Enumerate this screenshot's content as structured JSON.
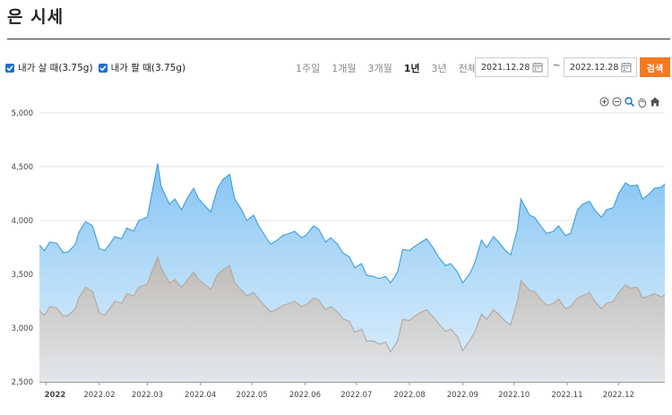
{
  "page": {
    "title": "은 시세"
  },
  "legend": {
    "buy_label": "내가 살 때(3.75g)",
    "sell_label": "내가 팔 때(3.75g)"
  },
  "periods": [
    {
      "label": "1주일",
      "active": false
    },
    {
      "label": "1개월",
      "active": false
    },
    {
      "label": "3개월",
      "active": false
    },
    {
      "label": "1년",
      "active": true
    },
    {
      "label": "3년",
      "active": false
    },
    {
      "label": "전체",
      "active": false
    }
  ],
  "date_range": {
    "start": "2021.12.28",
    "separator": "~",
    "end": "2022.12.28"
  },
  "search_label": "검색",
  "toolbar_icons": [
    "zoom-in-icon",
    "zoom-out-icon",
    "magnifier-icon",
    "pan-hand-icon",
    "home-icon"
  ],
  "colors": {
    "buy_line": "#3d9ee0",
    "buy_fill": "#9fd3f8",
    "sell_line": "#b0a9a3",
    "sell_fill": "#d4d6d9",
    "accent": "#f47a20"
  },
  "chart_data": {
    "type": "area",
    "title": "",
    "xlabel": "",
    "ylabel": "",
    "ylim": [
      2500,
      5000
    ],
    "yticks": [
      2500,
      3000,
      3500,
      4000,
      4500,
      5000
    ],
    "ytick_labels": [
      "2,500",
      "3,000",
      "3,500",
      "4,000",
      "4,500",
      "5,000"
    ],
    "x_start": "2021-12-28",
    "x_end": "2022-12-28",
    "xticks": [
      {
        "date": "2022-01-01",
        "label": "2022"
      },
      {
        "date": "2022-02-01",
        "label": "2022.02"
      },
      {
        "date": "2022-03-01",
        "label": "2022.03"
      },
      {
        "date": "2022-04-01",
        "label": "2022.04"
      },
      {
        "date": "2022-05-01",
        "label": "2022.05"
      },
      {
        "date": "2022-06-01",
        "label": "2022.06"
      },
      {
        "date": "2022-07-01",
        "label": "2022.07"
      },
      {
        "date": "2022-08-01",
        "label": "2022.08"
      },
      {
        "date": "2022-09-01",
        "label": "2022.09"
      },
      {
        "date": "2022-10-01",
        "label": "2022.10"
      },
      {
        "date": "2022-11-01",
        "label": "2022.11"
      },
      {
        "date": "2022-12-01",
        "label": "2022.12"
      }
    ],
    "grid": true,
    "legend": "top-left",
    "series": [
      {
        "name": "내가 살 때(3.75g)",
        "points": [
          [
            "2021-12-28",
            3770
          ],
          [
            "2021-12-31",
            3720
          ],
          [
            "2022-01-03",
            3800
          ],
          [
            "2022-01-07",
            3790
          ],
          [
            "2022-01-11",
            3700
          ],
          [
            "2022-01-14",
            3710
          ],
          [
            "2022-01-18",
            3780
          ],
          [
            "2022-01-20",
            3890
          ],
          [
            "2022-01-24",
            3990
          ],
          [
            "2022-01-28",
            3950
          ],
          [
            "2022-02-01",
            3740
          ],
          [
            "2022-02-04",
            3720
          ],
          [
            "2022-02-07",
            3780
          ],
          [
            "2022-02-10",
            3850
          ],
          [
            "2022-02-14",
            3830
          ],
          [
            "2022-02-17",
            3930
          ],
          [
            "2022-02-21",
            3900
          ],
          [
            "2022-02-24",
            4000
          ],
          [
            "2022-03-01",
            4030
          ],
          [
            "2022-03-03",
            4200
          ],
          [
            "2022-03-07",
            4530
          ],
          [
            "2022-03-09",
            4320
          ],
          [
            "2022-03-11",
            4250
          ],
          [
            "2022-03-14",
            4150
          ],
          [
            "2022-03-17",
            4200
          ],
          [
            "2022-03-21",
            4100
          ],
          [
            "2022-03-24",
            4200
          ],
          [
            "2022-03-28",
            4300
          ],
          [
            "2022-03-31",
            4200
          ],
          [
            "2022-04-04",
            4130
          ],
          [
            "2022-04-07",
            4080
          ],
          [
            "2022-04-11",
            4300
          ],
          [
            "2022-04-14",
            4380
          ],
          [
            "2022-04-18",
            4430
          ],
          [
            "2022-04-21",
            4200
          ],
          [
            "2022-04-25",
            4100
          ],
          [
            "2022-04-28",
            4000
          ],
          [
            "2022-05-02",
            4050
          ],
          [
            "2022-05-05",
            3950
          ],
          [
            "2022-05-09",
            3850
          ],
          [
            "2022-05-12",
            3780
          ],
          [
            "2022-05-16",
            3820
          ],
          [
            "2022-05-19",
            3860
          ],
          [
            "2022-05-23",
            3880
          ],
          [
            "2022-05-26",
            3900
          ],
          [
            "2022-05-30",
            3840
          ],
          [
            "2022-06-02",
            3870
          ],
          [
            "2022-06-06",
            3950
          ],
          [
            "2022-06-09",
            3920
          ],
          [
            "2022-06-13",
            3800
          ],
          [
            "2022-06-16",
            3840
          ],
          [
            "2022-06-20",
            3780
          ],
          [
            "2022-06-23",
            3700
          ],
          [
            "2022-06-27",
            3660
          ],
          [
            "2022-06-30",
            3560
          ],
          [
            "2022-07-04",
            3600
          ],
          [
            "2022-07-07",
            3490
          ],
          [
            "2022-07-11",
            3480
          ],
          [
            "2022-07-14",
            3460
          ],
          [
            "2022-07-18",
            3480
          ],
          [
            "2022-07-21",
            3420
          ],
          [
            "2022-07-25",
            3520
          ],
          [
            "2022-07-28",
            3730
          ],
          [
            "2022-08-01",
            3720
          ],
          [
            "2022-08-04",
            3760
          ],
          [
            "2022-08-08",
            3800
          ],
          [
            "2022-08-11",
            3830
          ],
          [
            "2022-08-15",
            3740
          ],
          [
            "2022-08-18",
            3660
          ],
          [
            "2022-08-22",
            3580
          ],
          [
            "2022-08-25",
            3600
          ],
          [
            "2022-08-29",
            3520
          ],
          [
            "2022-09-01",
            3420
          ],
          [
            "2022-09-05",
            3500
          ],
          [
            "2022-09-08",
            3600
          ],
          [
            "2022-09-12",
            3820
          ],
          [
            "2022-09-15",
            3750
          ],
          [
            "2022-09-19",
            3850
          ],
          [
            "2022-09-22",
            3800
          ],
          [
            "2022-09-26",
            3720
          ],
          [
            "2022-09-29",
            3680
          ],
          [
            "2022-10-03",
            3920
          ],
          [
            "2022-10-05",
            4200
          ],
          [
            "2022-10-10",
            4050
          ],
          [
            "2022-10-13",
            4030
          ],
          [
            "2022-10-17",
            3940
          ],
          [
            "2022-10-20",
            3880
          ],
          [
            "2022-10-24",
            3900
          ],
          [
            "2022-10-27",
            3950
          ],
          [
            "2022-10-31",
            3860
          ],
          [
            "2022-11-03",
            3880
          ],
          [
            "2022-11-07",
            4100
          ],
          [
            "2022-11-10",
            4150
          ],
          [
            "2022-11-14",
            4180
          ],
          [
            "2022-11-17",
            4100
          ],
          [
            "2022-11-21",
            4030
          ],
          [
            "2022-11-24",
            4100
          ],
          [
            "2022-11-28",
            4120
          ],
          [
            "2022-12-01",
            4250
          ],
          [
            "2022-12-05",
            4350
          ],
          [
            "2022-12-08",
            4320
          ],
          [
            "2022-12-12",
            4330
          ],
          [
            "2022-12-15",
            4200
          ],
          [
            "2022-12-19",
            4250
          ],
          [
            "2022-12-22",
            4300
          ],
          [
            "2022-12-26",
            4310
          ],
          [
            "2022-12-28",
            4340
          ]
        ]
      },
      {
        "name": "내가 팔 때(3.75g)",
        "points": [
          [
            "2021-12-28",
            3160
          ],
          [
            "2021-12-31",
            3120
          ],
          [
            "2022-01-03",
            3200
          ],
          [
            "2022-01-07",
            3190
          ],
          [
            "2022-01-11",
            3110
          ],
          [
            "2022-01-14",
            3120
          ],
          [
            "2022-01-18",
            3180
          ],
          [
            "2022-01-20",
            3280
          ],
          [
            "2022-01-24",
            3380
          ],
          [
            "2022-01-28",
            3340
          ],
          [
            "2022-02-01",
            3140
          ],
          [
            "2022-02-04",
            3120
          ],
          [
            "2022-02-07",
            3180
          ],
          [
            "2022-02-10",
            3250
          ],
          [
            "2022-02-14",
            3230
          ],
          [
            "2022-02-17",
            3320
          ],
          [
            "2022-02-21",
            3300
          ],
          [
            "2022-02-24",
            3380
          ],
          [
            "2022-03-01",
            3410
          ],
          [
            "2022-03-03",
            3500
          ],
          [
            "2022-03-07",
            3660
          ],
          [
            "2022-03-09",
            3560
          ],
          [
            "2022-03-11",
            3500
          ],
          [
            "2022-03-14",
            3420
          ],
          [
            "2022-03-17",
            3450
          ],
          [
            "2022-03-21",
            3380
          ],
          [
            "2022-03-24",
            3440
          ],
          [
            "2022-03-28",
            3520
          ],
          [
            "2022-03-31",
            3450
          ],
          [
            "2022-04-04",
            3400
          ],
          [
            "2022-04-07",
            3360
          ],
          [
            "2022-04-11",
            3500
          ],
          [
            "2022-04-14",
            3540
          ],
          [
            "2022-04-18",
            3580
          ],
          [
            "2022-04-21",
            3420
          ],
          [
            "2022-04-25",
            3350
          ],
          [
            "2022-04-28",
            3300
          ],
          [
            "2022-05-02",
            3330
          ],
          [
            "2022-05-05",
            3270
          ],
          [
            "2022-05-09",
            3200
          ],
          [
            "2022-05-12",
            3150
          ],
          [
            "2022-05-16",
            3180
          ],
          [
            "2022-05-19",
            3210
          ],
          [
            "2022-05-23",
            3230
          ],
          [
            "2022-05-26",
            3250
          ],
          [
            "2022-05-30",
            3200
          ],
          [
            "2022-06-02",
            3220
          ],
          [
            "2022-06-06",
            3280
          ],
          [
            "2022-06-09",
            3260
          ],
          [
            "2022-06-13",
            3170
          ],
          [
            "2022-06-16",
            3200
          ],
          [
            "2022-06-20",
            3150
          ],
          [
            "2022-06-23",
            3090
          ],
          [
            "2022-06-27",
            3060
          ],
          [
            "2022-06-30",
            2960
          ],
          [
            "2022-07-04",
            2990
          ],
          [
            "2022-07-07",
            2880
          ],
          [
            "2022-07-11",
            2880
          ],
          [
            "2022-07-14",
            2850
          ],
          [
            "2022-07-18",
            2870
          ],
          [
            "2022-07-21",
            2780
          ],
          [
            "2022-07-25",
            2880
          ],
          [
            "2022-07-28",
            3080
          ],
          [
            "2022-08-01",
            3070
          ],
          [
            "2022-08-04",
            3110
          ],
          [
            "2022-08-08",
            3150
          ],
          [
            "2022-08-11",
            3170
          ],
          [
            "2022-08-15",
            3100
          ],
          [
            "2022-08-18",
            3040
          ],
          [
            "2022-08-22",
            2970
          ],
          [
            "2022-08-25",
            2990
          ],
          [
            "2022-08-29",
            2920
          ],
          [
            "2022-09-01",
            2790
          ],
          [
            "2022-09-05",
            2880
          ],
          [
            "2022-09-08",
            2960
          ],
          [
            "2022-09-12",
            3130
          ],
          [
            "2022-09-15",
            3080
          ],
          [
            "2022-09-19",
            3170
          ],
          [
            "2022-09-22",
            3130
          ],
          [
            "2022-09-26",
            3060
          ],
          [
            "2022-09-29",
            3030
          ],
          [
            "2022-10-03",
            3250
          ],
          [
            "2022-10-05",
            3440
          ],
          [
            "2022-10-10",
            3350
          ],
          [
            "2022-10-13",
            3340
          ],
          [
            "2022-10-17",
            3260
          ],
          [
            "2022-10-20",
            3210
          ],
          [
            "2022-10-24",
            3230
          ],
          [
            "2022-10-27",
            3270
          ],
          [
            "2022-10-31",
            3180
          ],
          [
            "2022-11-03",
            3200
          ],
          [
            "2022-11-07",
            3280
          ],
          [
            "2022-11-10",
            3300
          ],
          [
            "2022-11-14",
            3330
          ],
          [
            "2022-11-17",
            3250
          ],
          [
            "2022-11-21",
            3180
          ],
          [
            "2022-11-24",
            3230
          ],
          [
            "2022-11-28",
            3250
          ],
          [
            "2022-12-01",
            3330
          ],
          [
            "2022-12-05",
            3400
          ],
          [
            "2022-12-08",
            3370
          ],
          [
            "2022-12-12",
            3380
          ],
          [
            "2022-12-15",
            3280
          ],
          [
            "2022-12-19",
            3300
          ],
          [
            "2022-12-22",
            3320
          ],
          [
            "2022-12-26",
            3290
          ],
          [
            "2022-12-28",
            3310
          ]
        ]
      }
    ]
  }
}
